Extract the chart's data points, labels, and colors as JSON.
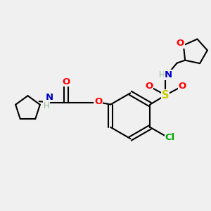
{
  "bg_color": "#f0f0f0",
  "bond_color": "#000000",
  "O_color": "#ff0000",
  "N_color": "#0000cd",
  "S_color": "#cccc00",
  "Cl_color": "#00aa00",
  "H_color": "#8fbc8f",
  "line_width": 1.5,
  "font_size": 9.5,
  "fig_width": 3.0,
  "fig_height": 3.0,
  "dpi": 100,
  "xlim": [
    0,
    10
  ],
  "ylim": [
    0,
    10
  ]
}
